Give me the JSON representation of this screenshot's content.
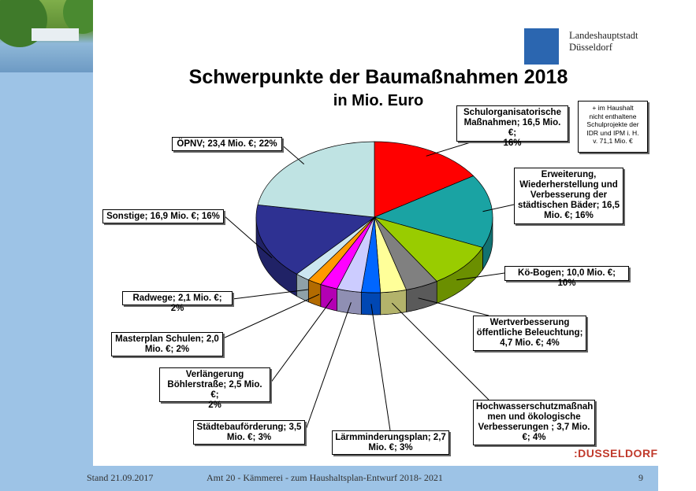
{
  "header": {
    "city_line1": "Landeshauptstadt",
    "city_line2": "Düsseldorf",
    "title": "Schwerpunkte der Baumaßnahmen 2018",
    "subtitle": "in Mio. Euro"
  },
  "note": {
    "line1": "+ im Haushalt",
    "line2": "nicht enthaltene",
    "line3": "Schulprojekte der",
    "line4": "IDR und IPM i. H.",
    "line5": "v. 71,1 Mio. €"
  },
  "labels": {
    "schul_1": "Schulorganisatorische",
    "schul_2": "Maßnahmen; 16,5 Mio. €;",
    "schul_3": "16%",
    "baeder_1": "Erweiterung,",
    "baeder_2": "Wiederherstellung und",
    "baeder_3": "Verbesserung der",
    "baeder_4": "städtischen Bäder; 16,5",
    "baeder_5": "Mio. €; 16%",
    "koe": "Kö-Bogen; 10,0 Mio. €; 10%",
    "wert_1": "Wertverbesserung",
    "wert_2": "öffentliche Beleuchtung;",
    "wert_3": "4,7 Mio. €; 4%",
    "hoch_1": "Hochwasserschutzmaßnah",
    "hoch_2": "men und ökologische",
    "hoch_3": "Verbesserungen ; 3,7 Mio.",
    "hoch_4": "€; 4%",
    "laerm_1": "Lärmminderungsplan; 2,7",
    "laerm_2": "Mio. €; 3%",
    "staedte_1": "Städtebauförderung; 3,5",
    "staedte_2": "Mio. €; 3%",
    "boehler_1": "Verlängerung",
    "boehler_2": "Böhlerstraße; 2,5 Mio. €;",
    "boehler_3": "2%",
    "master_1": "Masterplan Schulen; 2,0",
    "master_2": "Mio. €; 2%",
    "rad": "Radwege; 2,1 Mio. €; 2%",
    "sonst": "Sonstige; 16,9 Mio. €; 16%",
    "oepnv": "ÖPNV; 23,4 Mio. €; 22%"
  },
  "footer": {
    "date": "Stand 21.09.2017",
    "center": "Amt 20 - Kämmerei - zum Haushaltsplan-Entwurf 2018- 2021",
    "page": "9",
    "brand": ":DUSSELDORF"
  },
  "chart_data": {
    "type": "pie",
    "title": "Schwerpunkte der Baumaßnahmen 2018",
    "subtitle": "in Mio. Euro",
    "slices": [
      {
        "label": "Schulorganisatorische Maßnahmen",
        "value": 16.5,
        "percent": 16,
        "color": "#ff0000"
      },
      {
        "label": "Erweiterung, Wiederherstellung und Verbesserung der städtischen Bäder",
        "value": 16.5,
        "percent": 16,
        "color": "#1aa3a3"
      },
      {
        "label": "Kö-Bogen",
        "value": 10.0,
        "percent": 10,
        "color": "#99cc00"
      },
      {
        "label": "Wertverbesserung öffentliche Beleuchtung",
        "value": 4.7,
        "percent": 4,
        "color": "#808080"
      },
      {
        "label": "Hochwasserschutzmaßnahmen und ökologische Verbesserungen",
        "value": 3.7,
        "percent": 4,
        "color": "#ffff99"
      },
      {
        "label": "Lärmminderungsplan",
        "value": 2.7,
        "percent": 3,
        "color": "#0066ff"
      },
      {
        "label": "Städtebauförderung",
        "value": 3.5,
        "percent": 3,
        "color": "#ccccff"
      },
      {
        "label": "Verlängerung Böhlerstraße",
        "value": 2.5,
        "percent": 2,
        "color": "#ff00ff"
      },
      {
        "label": "Masterplan Schulen",
        "value": 2.0,
        "percent": 2,
        "color": "#ff9900"
      },
      {
        "label": "Radwege",
        "value": 2.1,
        "percent": 2,
        "color": "#cce6f0"
      },
      {
        "label": "Sonstige",
        "value": 16.9,
        "percent": 16,
        "color": "#2e3192"
      },
      {
        "label": "ÖPNV",
        "value": 23.4,
        "percent": 22,
        "color": "#bfe3e3"
      }
    ],
    "unit": "Mio. €"
  }
}
